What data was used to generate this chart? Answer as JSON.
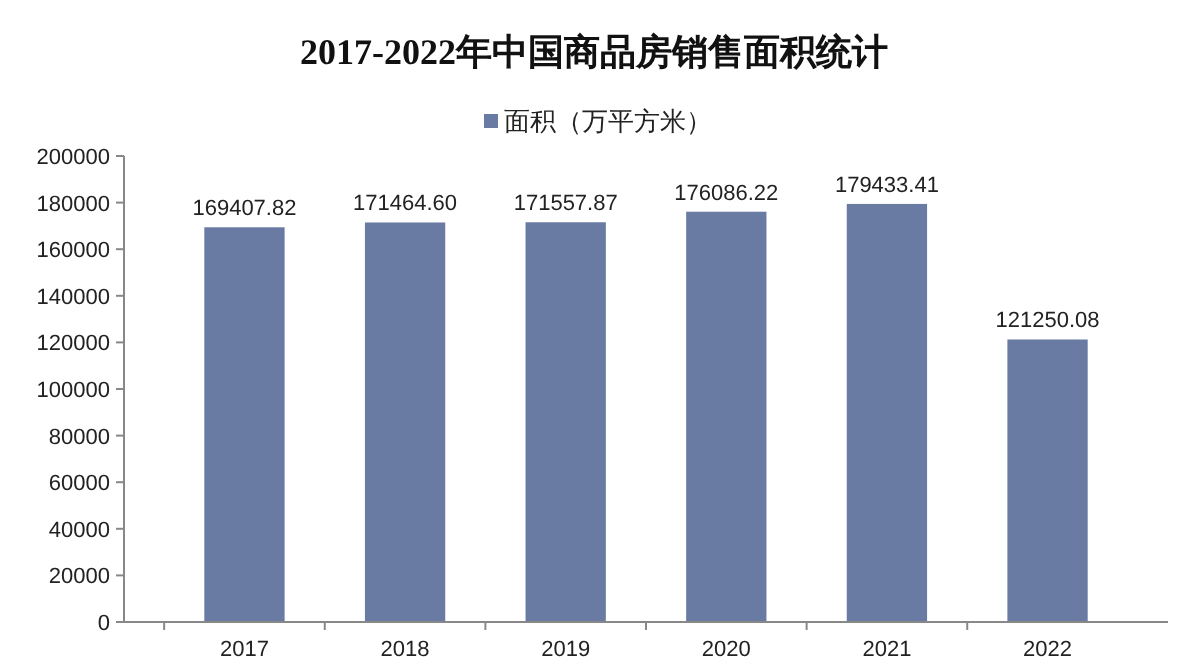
{
  "chart_data": {
    "type": "bar",
    "title": "2017-2022年中国商品房销售面积统计",
    "categories": [
      "2017",
      "2018",
      "2019",
      "2020",
      "2021",
      "2022"
    ],
    "series": [
      {
        "name": "面积（万平方米）",
        "color": "#6a7ba3",
        "values": [
          169407.82,
          171464.6,
          171557.87,
          176086.22,
          179433.41,
          121250.08
        ]
      }
    ],
    "value_labels": [
      "169407.82",
      "171464.60",
      "171557.87",
      "176086.22",
      "179433.41",
      "121250.08"
    ],
    "ylim": [
      0,
      200000
    ],
    "yticks": [
      0,
      20000,
      40000,
      60000,
      80000,
      100000,
      120000,
      140000,
      160000,
      180000,
      200000
    ],
    "legend": "top",
    "grid": false
  }
}
